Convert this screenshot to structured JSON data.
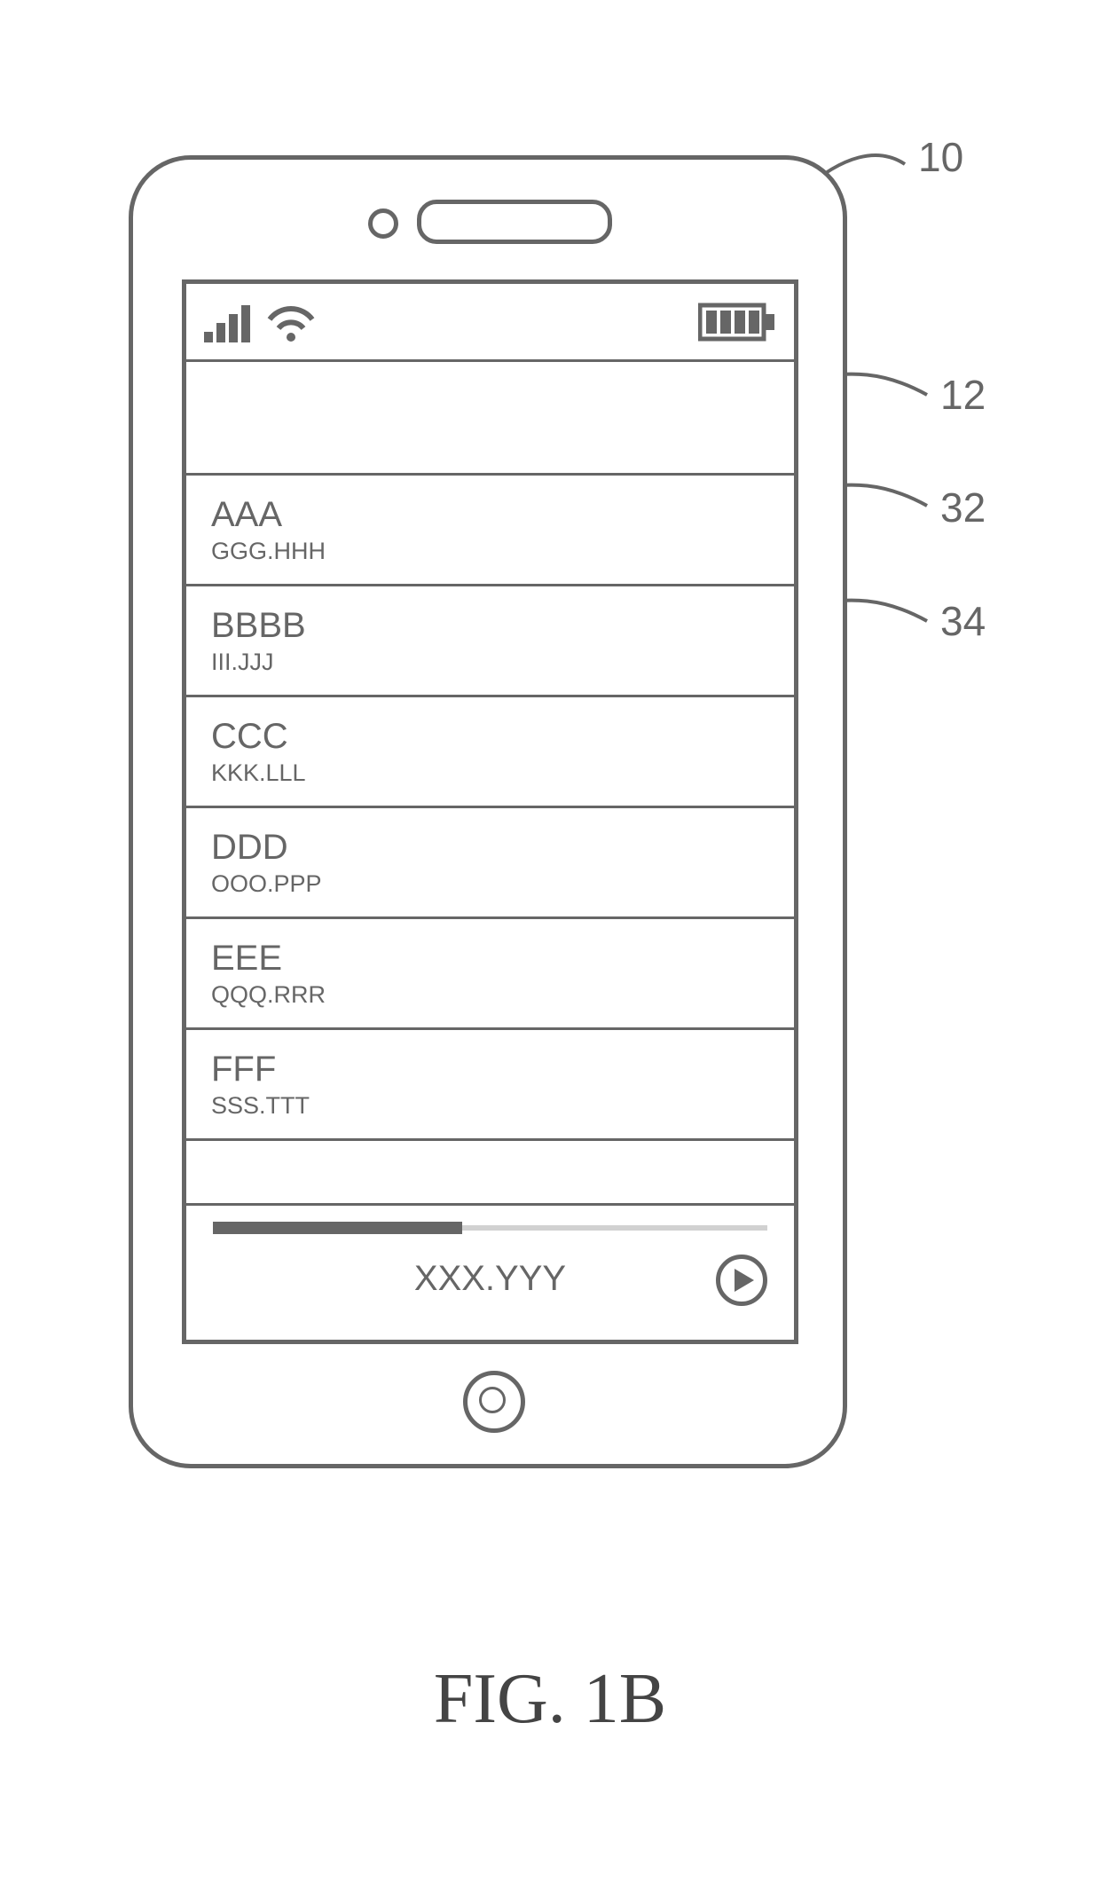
{
  "figure_label": "FIG. 1B",
  "callouts": {
    "device": "10",
    "header_row": "12",
    "row1": "32",
    "row2": "34"
  },
  "list": {
    "items": [
      {
        "title": "AAA",
        "sub": "GGG.HHH"
      },
      {
        "title": "BBBB",
        "sub": "III.JJJ"
      },
      {
        "title": "CCC",
        "sub": "KKK.LLL"
      },
      {
        "title": "DDD",
        "sub": "OOO.PPP"
      },
      {
        "title": "EEE",
        "sub": "QQQ.RRR"
      },
      {
        "title": "FFF",
        "sub": "SSS.TTT"
      }
    ]
  },
  "player": {
    "label": "XXX.YYY",
    "progress_pct": 45
  },
  "style": {
    "stroke": "#666666",
    "stroke_width": 5,
    "row_title_fontsize": 40,
    "row_sub_fontsize": 27,
    "callout_fontsize": 46,
    "fig_fontsize": 80,
    "phone_radius": 70,
    "signal_bars": 4
  }
}
